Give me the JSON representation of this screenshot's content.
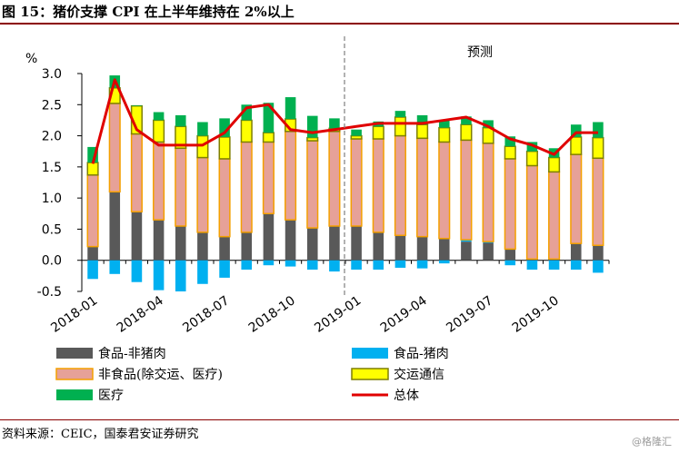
{
  "title": "图 15：猪价支撑 CPI 在上半年维持在 2%以上",
  "source": "资料来源：CEIC，国泰君安证券研究",
  "watermark": "@格隆汇",
  "chart_data": {
    "type": "bar",
    "stacked": true,
    "ylabel": "%",
    "ylim": [
      -0.5,
      3.0
    ],
    "yticks": [
      "3.0",
      "2.5",
      "2.0",
      "1.5",
      "1.0",
      "0.5",
      "0.0",
      "-0.5"
    ],
    "ytick_values": [
      3.0,
      2.5,
      2.0,
      1.5,
      1.0,
      0.5,
      0.0,
      -0.5
    ],
    "grid": false,
    "legend_position": "bottom",
    "annotation": "预测",
    "forecast_start_index": 12,
    "categories": [
      "2018-01",
      "2018-02",
      "2018-03",
      "2018-04",
      "2018-05",
      "2018-06",
      "2018-07",
      "2018-08",
      "2018-09",
      "2018-10",
      "2018-11",
      "2018-12",
      "2019-01",
      "2019-02",
      "2019-03",
      "2019-04",
      "2019-05",
      "2019-06",
      "2019-07",
      "2019-08",
      "2019-09",
      "2019-10",
      "2019-11",
      "2019-12"
    ],
    "xtick_labels": [
      "2018-01",
      "2018-04",
      "2018-07",
      "2018-10",
      "2019-01",
      "2019-04",
      "2019-07",
      "2019-10"
    ],
    "xtick_indices": [
      0,
      3,
      6,
      9,
      12,
      15,
      18,
      21
    ],
    "series": [
      {
        "name": "食品-非猪肉",
        "color": "#595959",
        "kind": "bar",
        "values": [
          0.22,
          1.1,
          0.78,
          0.65,
          0.55,
          0.45,
          0.38,
          0.45,
          0.75,
          0.65,
          0.52,
          0.55,
          0.55,
          0.45,
          0.4,
          0.38,
          0.35,
          0.3,
          0.28,
          0.18,
          0.02,
          0.02,
          0.27,
          0.24
        ]
      },
      {
        "name": "食品-猪肉",
        "color": "#00b0f0",
        "kind": "bar",
        "values": [
          -0.3,
          -0.22,
          -0.35,
          -0.48,
          -0.5,
          -0.38,
          -0.28,
          -0.15,
          -0.08,
          -0.1,
          -0.15,
          -0.18,
          -0.15,
          -0.15,
          -0.12,
          -0.13,
          -0.05,
          0.03,
          0.02,
          -0.08,
          -0.15,
          -0.15,
          -0.15,
          -0.2
        ]
      },
      {
        "name": "非食品(除交运、医疗)",
        "color": "#e6a198",
        "border": "#f4a000",
        "kind": "bar",
        "values": [
          1.15,
          1.42,
          1.25,
          1.25,
          1.25,
          1.2,
          1.25,
          1.45,
          1.15,
          1.42,
          1.4,
          1.52,
          1.4,
          1.5,
          1.6,
          1.58,
          1.55,
          1.6,
          1.58,
          1.45,
          1.5,
          1.4,
          1.43,
          1.4
        ]
      },
      {
        "name": "交运通信",
        "color": "#ffff00",
        "border": "#7f7f00",
        "kind": "bar",
        "values": [
          0.2,
          0.25,
          0.45,
          0.35,
          0.35,
          0.35,
          0.35,
          0.35,
          0.15,
          0.2,
          0.05,
          0.05,
          0.05,
          0.2,
          0.3,
          0.22,
          0.23,
          0.25,
          0.25,
          0.2,
          0.23,
          0.23,
          0.28,
          0.33
        ]
      },
      {
        "name": "医疗",
        "color": "#00b050",
        "kind": "bar",
        "values": [
          0.25,
          0.2,
          0.01,
          0.13,
          0.18,
          0.22,
          0.3,
          0.25,
          0.48,
          0.35,
          0.35,
          0.16,
          0.1,
          0.08,
          0.1,
          0.15,
          0.12,
          0.13,
          0.12,
          0.16,
          0.15,
          0.15,
          0.2,
          0.25
        ]
      },
      {
        "name": "总体",
        "color": "#e00000",
        "kind": "line",
        "values": [
          1.55,
          2.9,
          2.1,
          1.85,
          1.85,
          1.85,
          2.05,
          2.45,
          2.5,
          2.1,
          2.05,
          2.1,
          2.15,
          2.2,
          2.2,
          2.2,
          2.25,
          2.3,
          2.15,
          1.95,
          1.85,
          1.7,
          2.05,
          2.05
        ]
      }
    ]
  }
}
